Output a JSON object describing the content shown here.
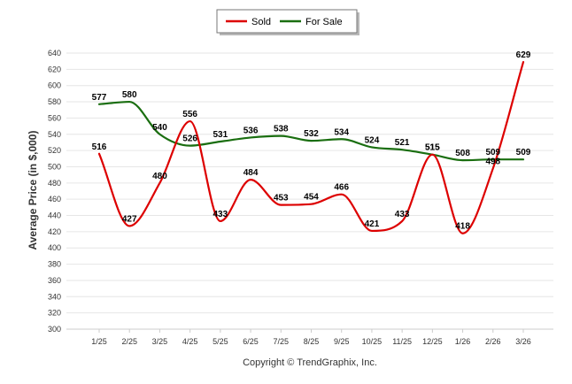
{
  "chart_data": {
    "type": "line",
    "categories": [
      "1/25",
      "2/25",
      "3/25",
      "4/25",
      "5/25",
      "6/25",
      "7/25",
      "8/25",
      "9/25",
      "10/25",
      "11/25",
      "12/25",
      "1/26",
      "2/26",
      "3/26"
    ],
    "series": [
      {
        "name": "Sold",
        "color": "#dd0000",
        "values": [
          516,
          427,
          480,
          556,
          433,
          484,
          453,
          454,
          466,
          421,
          433,
          515,
          418,
          498,
          629
        ]
      },
      {
        "name": "For Sale",
        "color": "#1a6e10",
        "values": [
          577,
          580,
          540,
          526,
          531,
          536,
          538,
          532,
          534,
          524,
          521,
          515,
          508,
          509,
          509
        ]
      }
    ],
    "ylabel": "Average Price (in $,000)",
    "xlabel": "",
    "ylim": [
      300,
      640
    ],
    "yticks": [
      300,
      320,
      340,
      360,
      380,
      400,
      420,
      440,
      460,
      480,
      500,
      520,
      540,
      560,
      580,
      600,
      620,
      640
    ],
    "grid": true,
    "legend": "top-center",
    "credit": "Copyright © TrendGraphix, Inc."
  }
}
